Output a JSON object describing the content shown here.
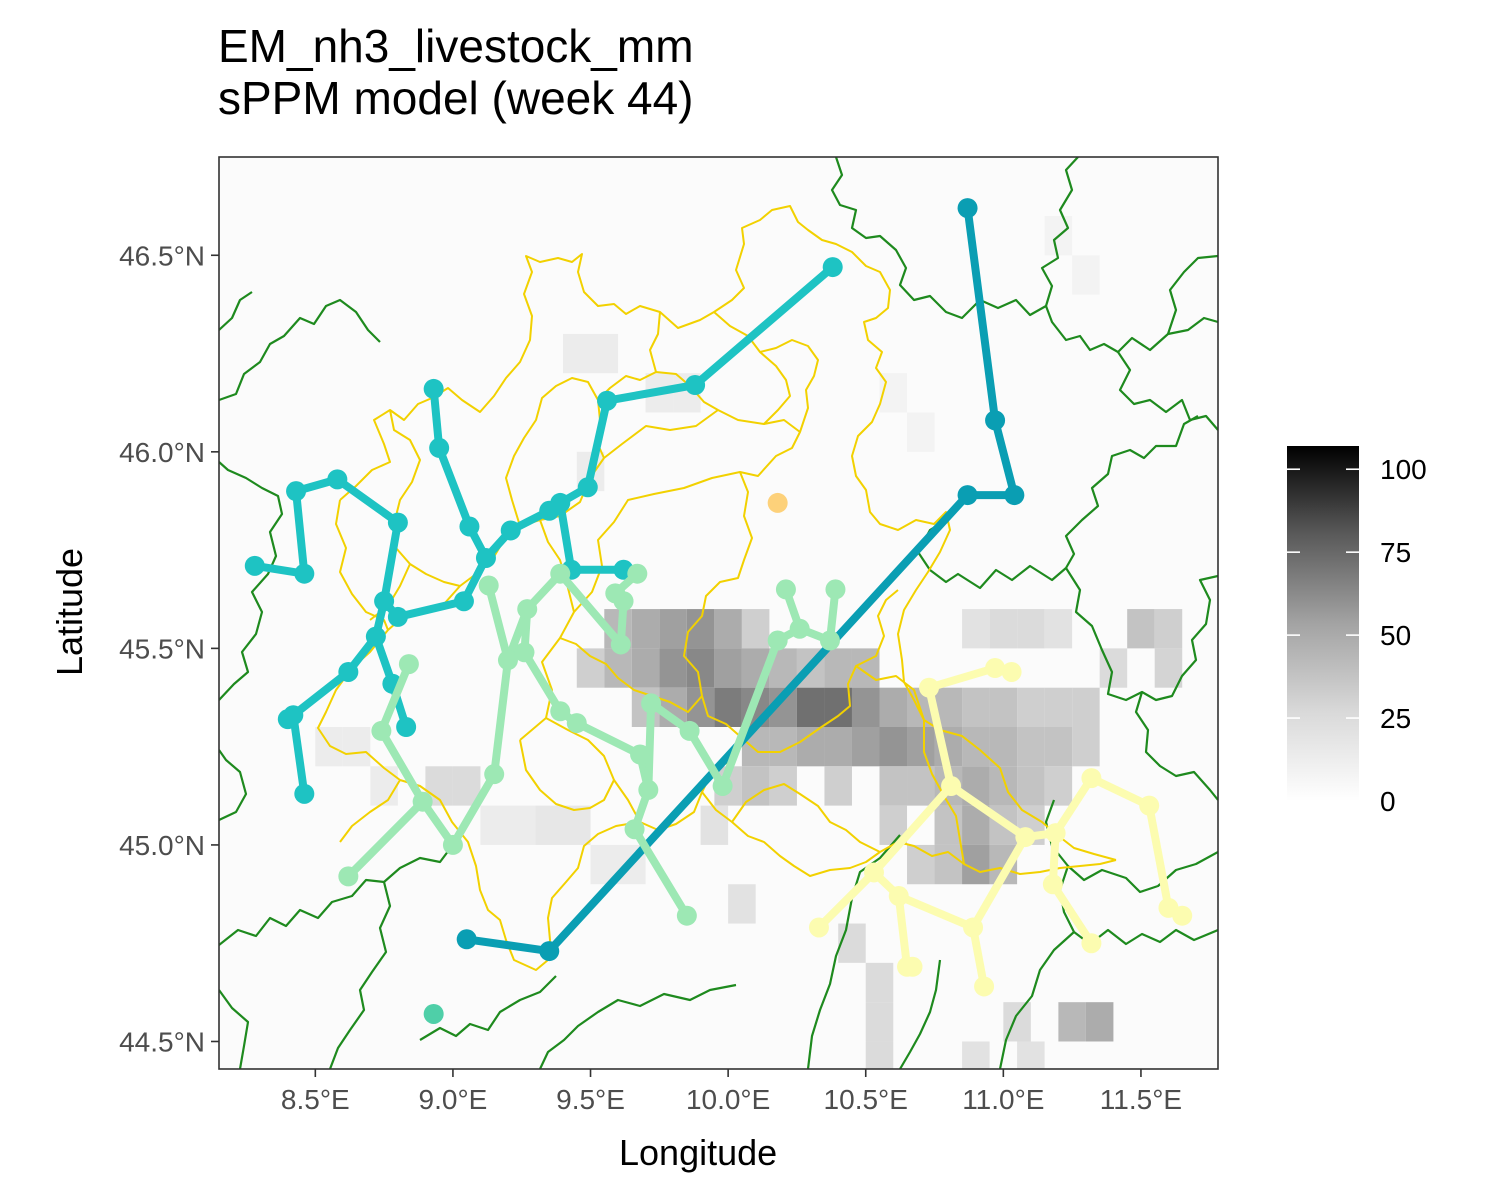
{
  "title": {
    "line1": "EM_nh3_livestock_mm",
    "line2": "sPPM model (week 44)"
  },
  "axes": {
    "x_title": "Longitude",
    "y_title": "Latitude",
    "x_range": [
      8.15,
      11.78
    ],
    "y_range": [
      44.43,
      46.75
    ],
    "x_ticks": [
      {
        "value": 8.5,
        "label": "8.5°E"
      },
      {
        "value": 9.0,
        "label": "9.0°E"
      },
      {
        "value": 9.5,
        "label": "9.5°E"
      },
      {
        "value": 10.0,
        "label": "10.0°E"
      },
      {
        "value": 10.5,
        "label": "10.5°E"
      },
      {
        "value": 11.0,
        "label": "11.0°E"
      },
      {
        "value": 11.5,
        "label": "11.5°E"
      }
    ],
    "y_ticks": [
      {
        "value": 44.5,
        "label": "44.5°N"
      },
      {
        "value": 45.0,
        "label": "45.0°N"
      },
      {
        "value": 45.5,
        "label": "45.5°N"
      },
      {
        "value": 46.0,
        "label": "46.0°N"
      },
      {
        "value": 46.5,
        "label": "46.5°N"
      }
    ]
  },
  "legend": {
    "min": 0,
    "max": 107,
    "ticks": [
      {
        "value": 0,
        "label": "0"
      },
      {
        "value": 25,
        "label": "25"
      },
      {
        "value": 50,
        "label": "50"
      },
      {
        "value": 75,
        "label": "75"
      },
      {
        "value": 100,
        "label": "100"
      }
    ]
  },
  "colors": {
    "panel_border": "#333333",
    "province_borders": "#f2d100",
    "region_borders": "#1e8a1e",
    "cluster_dark": "#0a9eb3",
    "cluster_teal": "#1ec3c3",
    "cluster_green": "#9de8b4",
    "cluster_yellow": "#fcfcb0",
    "orange_point": "#fdd17a"
  },
  "raster_cells": [
    [
      9.6,
      45.55,
      30
    ],
    [
      9.7,
      45.55,
      35
    ],
    [
      9.8,
      45.55,
      40
    ],
    [
      9.9,
      45.55,
      45
    ],
    [
      10.0,
      45.55,
      35
    ],
    [
      10.1,
      45.55,
      20
    ],
    [
      9.5,
      45.45,
      20
    ],
    [
      9.6,
      45.45,
      30
    ],
    [
      9.7,
      45.45,
      35
    ],
    [
      9.8,
      45.45,
      45
    ],
    [
      9.9,
      45.45,
      50
    ],
    [
      10.0,
      45.45,
      40
    ],
    [
      10.1,
      45.45,
      35
    ],
    [
      10.2,
      45.45,
      30
    ],
    [
      10.3,
      45.45,
      25
    ],
    [
      10.4,
      45.45,
      30
    ],
    [
      10.5,
      45.45,
      30
    ],
    [
      9.7,
      45.35,
      25
    ],
    [
      9.8,
      45.35,
      35
    ],
    [
      9.9,
      45.35,
      45
    ],
    [
      10.0,
      45.35,
      55
    ],
    [
      10.1,
      45.35,
      50
    ],
    [
      10.2,
      45.35,
      45
    ],
    [
      10.3,
      45.35,
      60
    ],
    [
      10.4,
      45.35,
      60
    ],
    [
      10.5,
      45.35,
      45
    ],
    [
      10.6,
      45.35,
      35
    ],
    [
      10.7,
      45.35,
      30
    ],
    [
      10.8,
      45.35,
      30
    ],
    [
      10.9,
      45.35,
      25
    ],
    [
      11.0,
      45.35,
      25
    ],
    [
      11.1,
      45.35,
      20
    ],
    [
      11.2,
      45.35,
      20
    ],
    [
      11.3,
      45.35,
      20
    ],
    [
      10.1,
      45.25,
      30
    ],
    [
      10.2,
      45.25,
      30
    ],
    [
      10.3,
      45.25,
      35
    ],
    [
      10.4,
      45.25,
      35
    ],
    [
      10.5,
      45.25,
      40
    ],
    [
      10.6,
      45.25,
      45
    ],
    [
      10.7,
      45.25,
      40
    ],
    [
      10.8,
      45.25,
      35
    ],
    [
      10.9,
      45.25,
      30
    ],
    [
      11.0,
      45.25,
      30
    ],
    [
      11.1,
      45.25,
      25
    ],
    [
      11.2,
      45.25,
      25
    ],
    [
      11.3,
      45.25,
      20
    ],
    [
      10.0,
      45.15,
      20
    ],
    [
      10.1,
      45.15,
      25
    ],
    [
      10.2,
      45.15,
      20
    ],
    [
      10.4,
      45.15,
      20
    ],
    [
      10.6,
      45.15,
      25
    ],
    [
      10.7,
      45.15,
      25
    ],
    [
      10.8,
      45.15,
      30
    ],
    [
      10.9,
      45.15,
      35
    ],
    [
      11.0,
      45.15,
      30
    ],
    [
      11.1,
      45.15,
      25
    ],
    [
      11.2,
      45.15,
      20
    ],
    [
      10.6,
      45.05,
      20
    ],
    [
      10.8,
      45.05,
      25
    ],
    [
      10.9,
      45.05,
      35
    ],
    [
      11.0,
      45.05,
      25
    ],
    [
      11.1,
      45.05,
      20
    ],
    [
      10.7,
      44.95,
      20
    ],
    [
      10.8,
      44.95,
      25
    ],
    [
      10.9,
      44.95,
      40
    ],
    [
      11.0,
      44.95,
      30
    ],
    [
      8.95,
      45.15,
      15
    ],
    [
      9.05,
      45.15,
      15
    ],
    [
      9.95,
      45.05,
      12
    ],
    [
      10.05,
      44.85,
      12
    ],
    [
      10.45,
      44.75,
      15
    ],
    [
      10.55,
      44.65,
      15
    ],
    [
      11.25,
      44.55,
      30
    ],
    [
      11.35,
      44.55,
      35
    ],
    [
      10.55,
      44.55,
      15
    ],
    [
      10.55,
      44.45,
      15
    ],
    [
      11.05,
      44.55,
      15
    ],
    [
      10.9,
      44.45,
      12
    ],
    [
      11.1,
      44.45,
      12
    ],
    [
      11.5,
      45.55,
      25
    ],
    [
      11.6,
      45.55,
      20
    ],
    [
      11.6,
      45.45,
      18
    ],
    [
      11.4,
      45.45,
      15
    ],
    [
      11.1,
      45.55,
      15
    ],
    [
      11.2,
      45.55,
      12
    ],
    [
      11.0,
      45.55,
      15
    ],
    [
      10.9,
      45.55,
      12
    ],
    [
      9.45,
      46.25,
      8
    ],
    [
      9.55,
      46.25,
      8
    ],
    [
      9.75,
      46.15,
      8
    ],
    [
      9.85,
      46.15,
      8
    ],
    [
      9.5,
      45.95,
      8
    ],
    [
      10.6,
      46.15,
      5
    ],
    [
      10.7,
      46.05,
      5
    ],
    [
      11.2,
      46.55,
      5
    ],
    [
      11.3,
      46.45,
      5
    ],
    [
      8.55,
      45.25,
      8
    ],
    [
      8.65,
      45.25,
      8
    ],
    [
      8.75,
      45.15,
      8
    ],
    [
      9.15,
      45.05,
      8
    ],
    [
      9.25,
      45.05,
      8
    ],
    [
      9.35,
      45.05,
      10
    ],
    [
      9.45,
      45.05,
      10
    ],
    [
      9.55,
      44.95,
      8
    ],
    [
      9.65,
      44.95,
      8
    ]
  ],
  "clusters": [
    {
      "id": "dark",
      "color": "#0a9eb3",
      "points": [
        [
          10.87,
          46.62
        ],
        [
          10.97,
          46.08
        ],
        [
          11.04,
          45.89
        ],
        [
          10.87,
          45.89
        ],
        [
          9.35,
          44.73
        ],
        [
          9.05,
          44.76
        ]
      ],
      "edges": [
        [
          0,
          1
        ],
        [
          1,
          2
        ],
        [
          2,
          3
        ],
        [
          3,
          4
        ],
        [
          4,
          5
        ]
      ]
    },
    {
      "id": "teal",
      "color": "#1ec3c3",
      "points": [
        [
          10.38,
          46.47
        ],
        [
          9.88,
          46.17
        ],
        [
          9.56,
          46.13
        ],
        [
          9.49,
          45.91
        ],
        [
          9.39,
          45.87
        ],
        [
          9.35,
          45.85
        ],
        [
          9.21,
          45.8
        ],
        [
          9.12,
          45.73
        ],
        [
          9.04,
          45.62
        ],
        [
          8.8,
          45.58
        ],
        [
          8.75,
          45.62
        ],
        [
          8.8,
          45.82
        ],
        [
          8.58,
          45.93
        ],
        [
          8.43,
          45.9
        ],
        [
          8.46,
          45.69
        ],
        [
          8.28,
          45.71
        ],
        [
          9.43,
          45.7
        ],
        [
          9.62,
          45.7
        ],
        [
          9.06,
          45.81
        ],
        [
          8.95,
          46.01
        ],
        [
          8.93,
          46.16
        ],
        [
          8.72,
          45.53
        ],
        [
          8.62,
          45.44
        ],
        [
          8.42,
          45.33
        ],
        [
          8.46,
          45.13
        ],
        [
          8.4,
          45.32
        ],
        [
          8.78,
          45.41
        ],
        [
          8.83,
          45.3
        ]
      ],
      "edges": [
        [
          0,
          1
        ],
        [
          1,
          2
        ],
        [
          2,
          3
        ],
        [
          3,
          4
        ],
        [
          4,
          5
        ],
        [
          5,
          6
        ],
        [
          6,
          7
        ],
        [
          7,
          8
        ],
        [
          8,
          9
        ],
        [
          9,
          10
        ],
        [
          10,
          11
        ],
        [
          11,
          12
        ],
        [
          12,
          13
        ],
        [
          13,
          14
        ],
        [
          14,
          15
        ],
        [
          4,
          16
        ],
        [
          16,
          17
        ],
        [
          7,
          18
        ],
        [
          18,
          19
        ],
        [
          19,
          20
        ],
        [
          10,
          21
        ],
        [
          21,
          22
        ],
        [
          22,
          23
        ],
        [
          23,
          24
        ],
        [
          23,
          25
        ],
        [
          21,
          26
        ],
        [
          26,
          27
        ]
      ]
    },
    {
      "id": "green",
      "color": "#9de8b4",
      "points": [
        [
          9.39,
          45.69
        ],
        [
          9.27,
          45.6
        ],
        [
          9.2,
          45.47
        ],
        [
          9.13,
          45.66
        ],
        [
          9.15,
          45.18
        ],
        [
          9.0,
          45.0
        ],
        [
          8.89,
          45.11
        ],
        [
          8.62,
          44.92
        ],
        [
          8.84,
          45.46
        ],
        [
          8.74,
          45.29
        ],
        [
          9.26,
          45.49
        ],
        [
          9.45,
          45.31
        ],
        [
          9.61,
          45.51
        ],
        [
          9.62,
          45.62
        ],
        [
          9.59,
          45.64
        ],
        [
          9.67,
          45.69
        ],
        [
          9.68,
          45.23
        ],
        [
          9.71,
          45.14
        ],
        [
          9.66,
          45.04
        ],
        [
          9.85,
          44.82
        ],
        [
          9.72,
          45.36
        ],
        [
          9.86,
          45.29
        ],
        [
          9.98,
          45.15
        ],
        [
          10.18,
          45.52
        ],
        [
          10.26,
          45.55
        ],
        [
          10.21,
          45.65
        ],
        [
          10.37,
          45.52
        ],
        [
          10.39,
          45.65
        ],
        [
          9.39,
          45.34
        ]
      ],
      "edges": [
        [
          0,
          1
        ],
        [
          1,
          2
        ],
        [
          2,
          3
        ],
        [
          2,
          4
        ],
        [
          4,
          5
        ],
        [
          5,
          6
        ],
        [
          6,
          7
        ],
        [
          6,
          9
        ],
        [
          9,
          8
        ],
        [
          1,
          10
        ],
        [
          10,
          28
        ],
        [
          28,
          11
        ],
        [
          11,
          16
        ],
        [
          16,
          17
        ],
        [
          17,
          18
        ],
        [
          18,
          19
        ],
        [
          0,
          12
        ],
        [
          12,
          13
        ],
        [
          13,
          14
        ],
        [
          14,
          15
        ],
        [
          17,
          20
        ],
        [
          20,
          21
        ],
        [
          21,
          22
        ],
        [
          22,
          23
        ],
        [
          23,
          24
        ],
        [
          24,
          25
        ],
        [
          24,
          26
        ],
        [
          26,
          27
        ]
      ]
    },
    {
      "id": "yellow",
      "color": "#fcfcb0",
      "points": [
        [
          10.73,
          45.4
        ],
        [
          10.97,
          45.45
        ],
        [
          11.03,
          45.44
        ],
        [
          10.81,
          45.15
        ],
        [
          11.08,
          45.02
        ],
        [
          11.19,
          45.03
        ],
        [
          11.32,
          45.17
        ],
        [
          11.53,
          45.1
        ],
        [
          11.6,
          44.84
        ],
        [
          11.65,
          44.82
        ],
        [
          10.53,
          44.93
        ],
        [
          10.33,
          44.79
        ],
        [
          10.62,
          44.87
        ],
        [
          10.65,
          44.69
        ],
        [
          10.67,
          44.69
        ],
        [
          10.89,
          44.79
        ],
        [
          10.93,
          44.64
        ],
        [
          11.18,
          44.9
        ],
        [
          11.32,
          44.75
        ]
      ],
      "edges": [
        [
          0,
          1
        ],
        [
          1,
          2
        ],
        [
          0,
          3
        ],
        [
          3,
          4
        ],
        [
          4,
          5
        ],
        [
          5,
          6
        ],
        [
          6,
          7
        ],
        [
          7,
          8
        ],
        [
          8,
          9
        ],
        [
          4,
          15
        ],
        [
          15,
          16
        ],
        [
          5,
          17
        ],
        [
          17,
          18
        ],
        [
          3,
          10
        ],
        [
          10,
          11
        ],
        [
          10,
          12
        ],
        [
          12,
          13
        ],
        [
          13,
          14
        ],
        [
          12,
          15
        ]
      ]
    }
  ],
  "extra_points": [
    {
      "lon": 10.18,
      "lat": 45.87,
      "color": "#fdd17a"
    },
    {
      "lon": 8.93,
      "lat": 44.57,
      "color": "#4fcfa8"
    }
  ]
}
